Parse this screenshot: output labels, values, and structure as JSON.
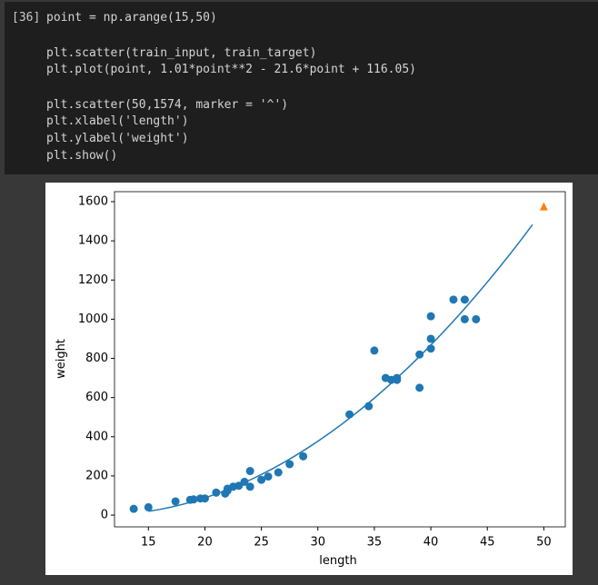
{
  "cell": {
    "prompt": "[36]",
    "lines": [
      "point = np.arange(15,50)",
      "plt.scatter(train_input, train_target)",
      "plt.plot(point, 1.01*point**2 - 21.6*point + 116.05)",
      "plt.scatter(50,1574, marker = '^')",
      "plt.xlabel('length')",
      "plt.ylabel('weight')",
      "plt.show()"
    ]
  },
  "chart_data": {
    "type": "scatter",
    "xlabel": "length",
    "ylabel": "weight",
    "xlim": [
      12,
      51.9
    ],
    "ylim": [
      -60,
      1651
    ],
    "xticks": [
      15,
      20,
      25,
      30,
      35,
      40,
      45,
      50
    ],
    "yticks": [
      0,
      200,
      400,
      600,
      800,
      1000,
      1200,
      1400,
      1600
    ],
    "series": [
      {
        "type": "scatter",
        "marker": "circle",
        "color": "#1f77b4",
        "x": [
          13.7,
          15,
          17.4,
          18.7,
          19,
          19.6,
          20,
          21,
          21.8,
          22,
          22,
          22.5,
          23,
          23.5,
          24,
          24,
          25,
          25.6,
          26.5,
          27.5,
          28.7,
          32.8,
          34.5,
          35,
          36,
          36.5,
          37,
          37,
          39,
          39,
          40,
          40,
          40,
          42,
          43,
          43,
          44
        ],
        "values": [
          32,
          40,
          70,
          78,
          80,
          85,
          85,
          115,
          110,
          125,
          135,
          145,
          150,
          170,
          145,
          225,
          180,
          197,
          218,
          260,
          300,
          514,
          556,
          840,
          700,
          690,
          700,
          690,
          650,
          820,
          850,
          900,
          1015,
          1100,
          1100,
          1000,
          1000
        ]
      },
      {
        "type": "line",
        "color": "#1f77b4",
        "x": [
          15,
          16,
          17,
          18,
          19,
          20,
          21,
          22,
          23,
          24,
          25,
          26,
          27,
          28,
          29,
          30,
          31,
          32,
          33,
          34,
          35,
          36,
          37,
          38,
          39,
          40,
          41,
          42,
          43,
          44,
          45,
          46,
          47,
          48,
          49
        ],
        "values": [
          19.3,
          29.01,
          40.74,
          54.49,
          70.26,
          88.05,
          107.86,
          129.69,
          153.54,
          179.41,
          207.3,
          237.21,
          269.14,
          303.09,
          339.06,
          377.05,
          417.06,
          459.09,
          503.14,
          549.21,
          597.3,
          647.41,
          699.54,
          753.69,
          809.86,
          868.05,
          928.26,
          990.49,
          1054.74,
          1121.01,
          1189.3,
          1259.61,
          1331.94,
          1406.29,
          1482.66
        ]
      },
      {
        "type": "scatter",
        "marker": "triangle",
        "color": "#ff7f0e",
        "x": [
          50
        ],
        "values": [
          1574
        ]
      }
    ]
  }
}
